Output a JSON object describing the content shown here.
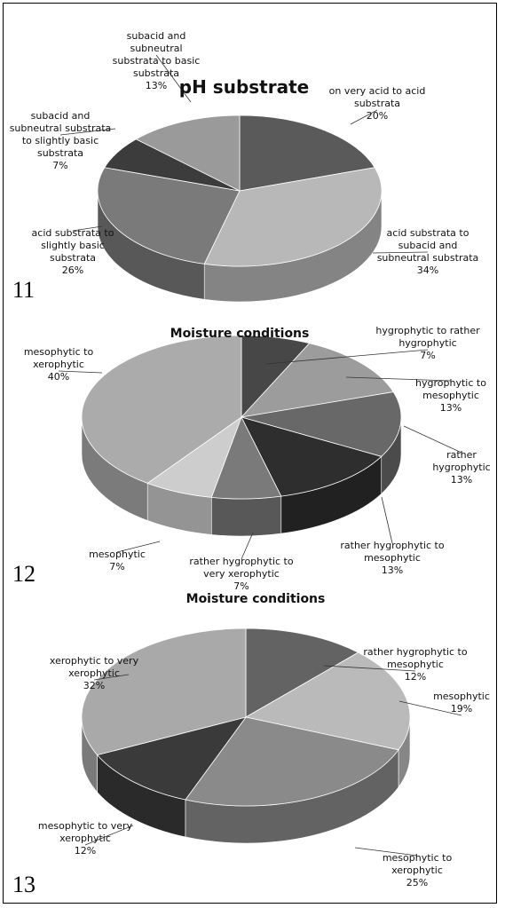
{
  "chart_data": [
    {
      "type": "pie",
      "title": "pH substrate",
      "panel_label": "11",
      "categories": [
        "on very acid to acid substrata",
        "acid substrata to subacid and subneutral substrata",
        "acid substrata to slightly basic substrata",
        "subacid and subneutral substrata to slightly basic substrata",
        "subacid and subneutral substrata to basic substrata"
      ],
      "values": [
        20,
        34,
        26,
        7,
        13
      ],
      "value_labels": [
        "20%",
        "34%",
        "26%",
        "7%",
        "13%"
      ],
      "colors": [
        "#5a5a5a",
        "#b8b8b8",
        "#7a7a7a",
        "#3c3c3c",
        "#9a9a9a"
      ]
    },
    {
      "type": "pie",
      "title": "Moisture conditions",
      "panel_label": "12",
      "categories": [
        "hygrophytic to rather hygrophytic",
        "hygrophytic to mesophytic",
        "rather hygrophytic",
        "rather hygrophytic to mesophytic",
        "rather hygrophytic to very xerophytic",
        "mesophytic",
        "mesophytic to xerophytic"
      ],
      "values": [
        7,
        13,
        13,
        13,
        7,
        7,
        40
      ],
      "value_labels": [
        "7%",
        "13%",
        "13%",
        "13%",
        "7%",
        "7%",
        "40%"
      ],
      "colors": [
        "#474747",
        "#9c9c9c",
        "#686868",
        "#2e2e2e",
        "#7a7a7a",
        "#cdcdcd",
        "#ababab"
      ]
    },
    {
      "type": "pie",
      "title": "Moisture conditions",
      "panel_label": "13",
      "categories": [
        "rather hygrophytic to mesophytic",
        "mesophytic",
        "mesophytic to xerophytic",
        "mesophytic to very xerophytic",
        "xerophytic to very xerophytic"
      ],
      "values": [
        12,
        19,
        25,
        12,
        32
      ],
      "value_labels": [
        "12%",
        "19%",
        "25%",
        "12%",
        "32%"
      ],
      "colors": [
        "#636363",
        "#bababa",
        "#8a8a8a",
        "#3a3a3a",
        "#a9a9a9"
      ]
    }
  ]
}
